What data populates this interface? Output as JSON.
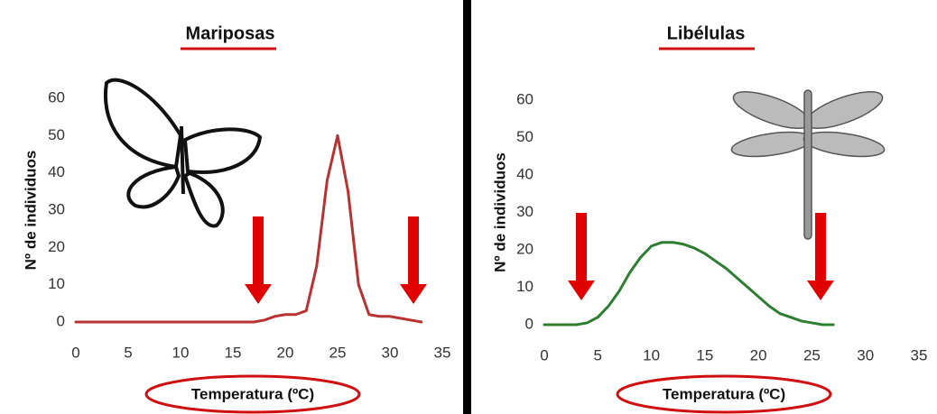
{
  "chart_data": [
    {
      "type": "line",
      "title": "Mariposas",
      "xlabel": "Temperatura (ºC)",
      "ylabel": "Nº de individuos",
      "x": [
        0,
        5,
        10,
        15,
        17,
        18,
        19,
        20,
        21,
        22,
        23,
        24,
        25,
        26,
        27,
        28,
        29,
        30,
        31,
        32,
        33
      ],
      "series": [
        {
          "name": null,
          "color": "#b83232",
          "values": [
            0,
            0,
            0,
            0,
            0,
            0.5,
            1.5,
            2,
            2,
            3,
            15,
            38,
            50,
            35,
            10,
            2,
            1.5,
            1.5,
            1,
            0.5,
            0
          ]
        }
      ],
      "xlim": [
        0,
        35
      ],
      "xticks": [
        0,
        5,
        10,
        15,
        20,
        25,
        30,
        35
      ],
      "ylim": [
        0,
        60
      ],
      "yticks": [
        0,
        10,
        20,
        30,
        40,
        50,
        60
      ],
      "grid": false
    },
    {
      "type": "line",
      "title": "Libélulas",
      "xlabel": "Temperatura (ºC)",
      "ylabel": "Nº de individuos",
      "x": [
        0,
        3,
        4,
        5,
        6,
        7,
        8,
        9,
        10,
        11,
        12,
        13,
        14,
        15,
        16,
        17,
        18,
        19,
        20,
        21,
        22,
        23,
        24,
        25,
        26,
        27
      ],
      "series": [
        {
          "name": null,
          "color": "#2e7d32",
          "values": [
            0,
            0,
            0.5,
            2,
            5,
            9,
            14,
            18,
            21,
            22,
            22,
            21.5,
            20.5,
            19,
            17,
            15,
            12.5,
            10,
            7.5,
            5,
            3,
            2,
            1,
            0.5,
            0,
            0
          ]
        }
      ],
      "xlim": [
        0,
        35
      ],
      "xticks": [
        0,
        5,
        10,
        15,
        20,
        25,
        30,
        35
      ],
      "ylim": [
        0,
        60
      ],
      "yticks": [
        0,
        10,
        20,
        30,
        40,
        50,
        60
      ],
      "grid": false
    }
  ]
}
